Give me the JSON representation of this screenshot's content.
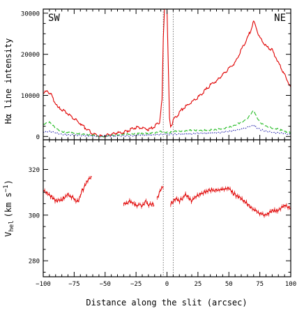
{
  "chart_data": [
    {
      "type": "line",
      "panel": "top",
      "xlabel": "",
      "ylabel": "Hα line intensity",
      "xlim": [
        -100,
        100
      ],
      "ylim": [
        -800,
        31000
      ],
      "yticks": [
        0,
        10000,
        20000,
        30000
      ],
      "ytick_labels": [
        "0",
        "10000",
        "20000",
        "30000"
      ],
      "annotations": {
        "left": "SW",
        "right": "NE"
      },
      "vlines": [
        -3,
        5
      ],
      "series": [
        {
          "style": "solid",
          "color": "#e00000",
          "x": [
            -100,
            -97,
            -94,
            -91,
            -88,
            -85,
            -80,
            -75,
            -70,
            -65,
            -60,
            -55,
            -52,
            -50,
            -45,
            -40,
            -35,
            -30,
            -25,
            -20,
            -15,
            -10,
            -6,
            -4,
            -3,
            -2,
            -1,
            0,
            1,
            2,
            3,
            4,
            5,
            8,
            12,
            16,
            20,
            25,
            30,
            35,
            40,
            45,
            50,
            55,
            60,
            65,
            68,
            70,
            72,
            75,
            80,
            85,
            90,
            95,
            100
          ],
          "y": [
            10500,
            11000,
            10500,
            8500,
            7000,
            6600,
            5500,
            4300,
            3200,
            1800,
            700,
            100,
            50,
            200,
            600,
            900,
            1000,
            1600,
            2200,
            2000,
            1700,
            2500,
            3500,
            9000,
            24000,
            31000,
            31000,
            31000,
            18000,
            4500,
            2500,
            3000,
            4000,
            5000,
            6500,
            7500,
            8500,
            9500,
            11000,
            12500,
            13500,
            15000,
            16500,
            18000,
            21000,
            24000,
            26000,
            28000,
            26500,
            24000,
            22000,
            21000,
            18000,
            15000,
            12000
          ]
        },
        {
          "style": "dashed",
          "color": "#22bb22",
          "x": [
            -100,
            -95,
            -90,
            -85,
            -80,
            -70,
            -60,
            -55,
            -50,
            -40,
            -30,
            -20,
            -10,
            -5,
            -2,
            2,
            5,
            10,
            20,
            30,
            40,
            50,
            55,
            60,
            65,
            70,
            72,
            75,
            80,
            85,
            90,
            95,
            100
          ],
          "y": [
            3000,
            3500,
            2000,
            1200,
            1000,
            600,
            400,
            -100,
            100,
            400,
            600,
            700,
            900,
            1200,
            1000,
            900,
            1200,
            1300,
            1500,
            1500,
            1700,
            2200,
            2800,
            3500,
            4300,
            6400,
            5000,
            3500,
            2500,
            2000,
            1800,
            1200,
            900
          ]
        },
        {
          "style": "dotted",
          "color": "#2222aa",
          "x": [
            -100,
            -95,
            -90,
            -85,
            -80,
            -70,
            -60,
            -55,
            -50,
            -40,
            -30,
            -20,
            -10,
            -5,
            0,
            5,
            10,
            20,
            30,
            40,
            50,
            55,
            60,
            65,
            70,
            72,
            75,
            80,
            85,
            90,
            95,
            100
          ],
          "y": [
            1000,
            1300,
            900,
            500,
            400,
            300,
            100,
            0,
            50,
            150,
            200,
            300,
            400,
            500,
            600,
            500,
            600,
            700,
            800,
            900,
            1200,
            1500,
            1800,
            2200,
            2800,
            2300,
            1700,
            1300,
            1000,
            900,
            700,
            500
          ]
        }
      ]
    },
    {
      "type": "scatter",
      "panel": "bottom",
      "xlabel": "Distance along the slit (arcsec)",
      "ylabel": "V",
      "ylabel_sub": "hel",
      "ylabel_unit": "(km s",
      "ylabel_sup": "−1",
      "ylabel_close": ")",
      "xlim": [
        -100,
        100
      ],
      "ylim": [
        273,
        333
      ],
      "xticks": [
        -100,
        -75,
        -50,
        -25,
        0,
        25,
        50,
        75,
        100
      ],
      "xtick_labels": [
        "−100",
        "−75",
        "−50",
        "−25",
        "0",
        "25",
        "50",
        "75",
        "100"
      ],
      "yticks": [
        280,
        300,
        320
      ],
      "ytick_labels": [
        "280",
        "300",
        "320"
      ],
      "vlines": [
        -3,
        5
      ],
      "series": [
        {
          "color": "#e00000",
          "segments": [
            {
              "x": [
                -100,
                -95,
                -90,
                -85,
                -80,
                -75,
                -72,
                -70,
                -67,
                -65,
                -63,
                -61
              ],
              "y": [
                311,
                309,
                306,
                307,
                309,
                307,
                306,
                309,
                312,
                314,
                316,
                317
              ]
            },
            {
              "x": [
                -35,
                -30,
                -25,
                -22,
                -20,
                -17,
                -15,
                -12,
                -10
              ],
              "y": [
                305,
                306,
                304,
                305,
                304,
                306,
                304,
                305,
                304
              ]
            },
            {
              "x": [
                -8,
                -5,
                -3
              ],
              "y": [
                307,
                311,
                313
              ]
            },
            {
              "x": [
                3,
                5,
                8,
                10,
                15,
                20,
                25,
                30,
                35,
                40,
                45,
                50,
                55,
                60,
                65,
                70,
                75,
                80,
                85,
                90,
                95,
                100
              ],
              "y": [
                305,
                306,
                307,
                306,
                309,
                306,
                309,
                310,
                311,
                311,
                311,
                312,
                309,
                307,
                305,
                302,
                301,
                300,
                302,
                302,
                304,
                303
              ]
            }
          ]
        }
      ]
    }
  ]
}
